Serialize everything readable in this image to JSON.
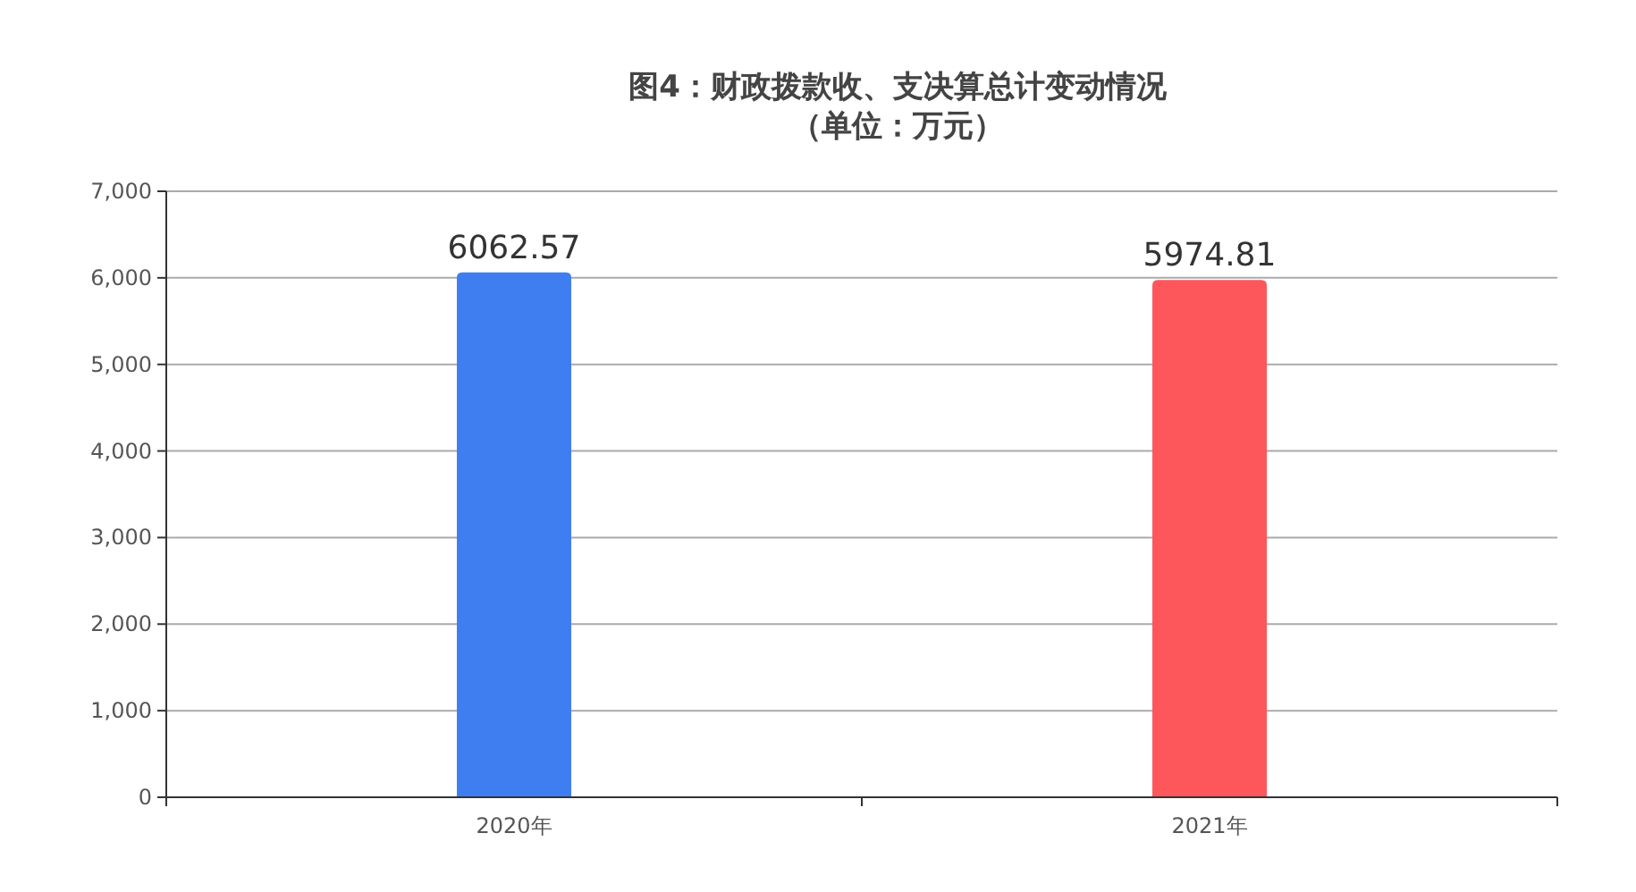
{
  "chart_data": {
    "type": "bar",
    "title": "图4：财政拨款收、支决算总计变动情况",
    "subtitle": "（单位：万元）",
    "categories": [
      "2020年",
      "2021年"
    ],
    "values": [
      6062.57,
      5974.81
    ],
    "colors": [
      "#3f7ef0",
      "#fd575c"
    ],
    "ylim": [
      0,
      7000
    ],
    "yticks": [
      0,
      {
        "value": 1000,
        "label": "1,000"
      },
      {
        "value": 2000,
        "label": "2,000"
      },
      {
        "value": 3000,
        "label": "3,000"
      },
      {
        "value": 4000,
        "label": "4,000"
      },
      {
        "value": 5000,
        "label": "5,000"
      },
      {
        "value": 6000,
        "label": "6,000"
      },
      {
        "value": 7000,
        "label": "7,000"
      }
    ],
    "grid": "y",
    "data_labels": true
  }
}
